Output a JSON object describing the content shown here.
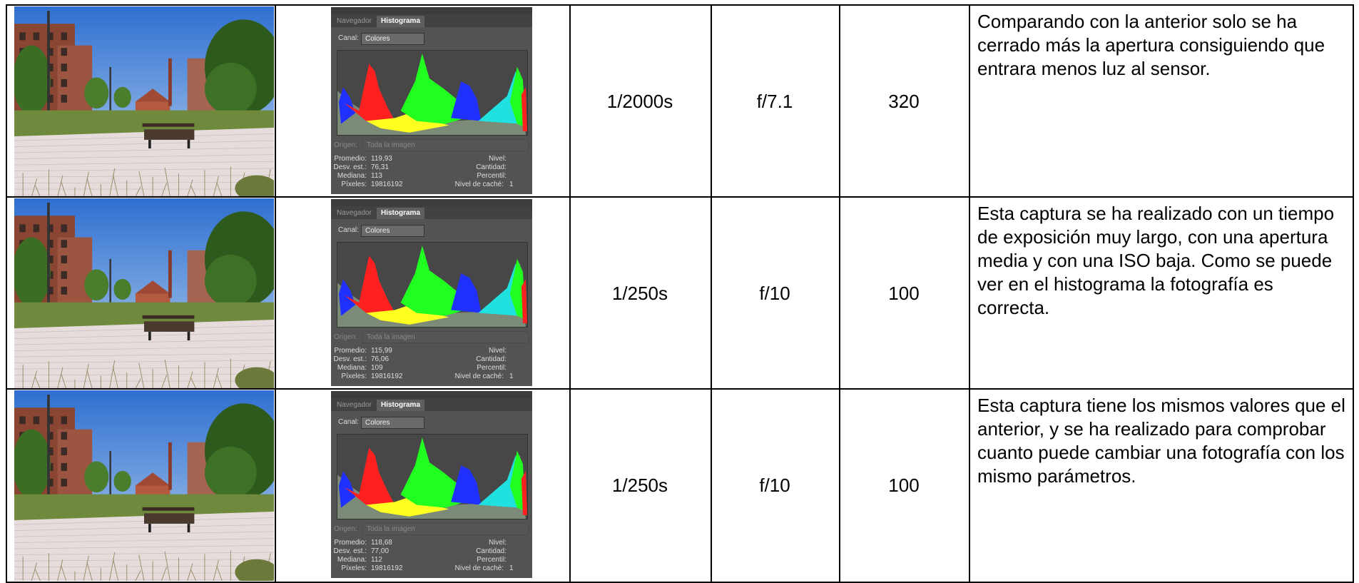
{
  "table": {
    "rows": [
      {
        "histogram": {
          "tabs": [
            "Navegador",
            "Histograma"
          ],
          "channel_label": "Canal:",
          "channel": "Colores",
          "source_label": "Origen:",
          "source": "Toda la imagen",
          "stats": [
            [
              "Promedio:",
              "119,93"
            ],
            [
              "Desv. est.:",
              "76,31"
            ],
            [
              "Mediana:",
              "113"
            ],
            [
              "Píxeles:",
              "19816192"
            ]
          ],
          "right_labels": [
            "Nivel:",
            "Cantidad:",
            "Percentil:",
            "Nivel de caché:"
          ],
          "cache_level": 1
        },
        "shutter": "1/2000s",
        "aperture": "f/7.1",
        "iso": 320,
        "description": "Comparando con la anterior solo se ha cerrado más la apertura consiguiendo que entrara menos luz al sensor."
      },
      {
        "histogram": {
          "tabs": [
            "Navegador",
            "Histograma"
          ],
          "channel_label": "Canal:",
          "channel": "Colores",
          "source_label": "Origen:",
          "source": "Toda la imagen",
          "stats": [
            [
              "Promedio:",
              "115,99"
            ],
            [
              "Desv. est.:",
              "76,06"
            ],
            [
              "Mediana:",
              "109"
            ],
            [
              "Píxeles:",
              "19816192"
            ]
          ],
          "right_labels": [
            "Nivel:",
            "Cantidad:",
            "Percentil:",
            "Nivel de caché:"
          ],
          "cache_level": 1
        },
        "shutter": "1/250s",
        "aperture": "f/10",
        "iso": 100,
        "description": "Esta captura se ha realizado con un tiempo de exposición muy largo, con una apertura media y con una ISO baja. Como se puede ver en el histograma la fotografía es correcta."
      },
      {
        "histogram": {
          "tabs": [
            "Navegador",
            "Histograma"
          ],
          "channel_label": "Canal:",
          "channel": "Colores",
          "source_label": "Origen:",
          "source": "Toda la imagen",
          "stats": [
            [
              "Promedio:",
              "118,68"
            ],
            [
              "Desv. est.:",
              "77,00"
            ],
            [
              "Mediana:",
              "112"
            ],
            [
              "Píxeles:",
              "19816192"
            ]
          ],
          "right_labels": [
            "Nivel:",
            "Cantidad:",
            "Percentil:",
            "Nivel de caché:"
          ],
          "cache_level": 1
        },
        "shutter": "1/250s",
        "aperture": "f/10",
        "iso": 100,
        "description": "Esta captura tiene los mismos valores que el anterior, y se ha realizado para comprobar cuanto puede cambiar una fotografía con los mismo parámetros."
      }
    ]
  }
}
